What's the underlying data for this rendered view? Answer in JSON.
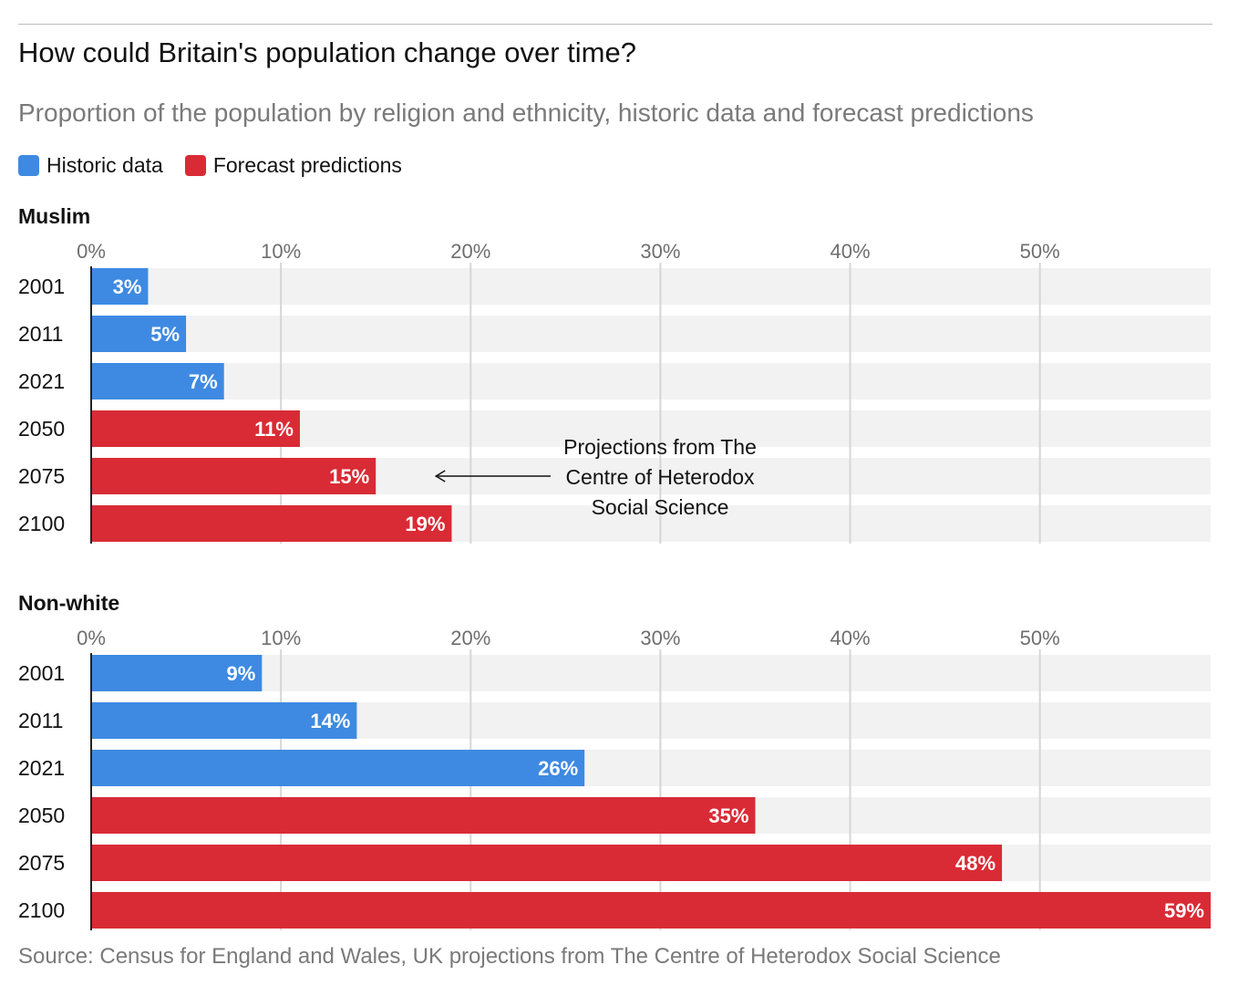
{
  "title": "How could Britain's population change over time?",
  "subtitle": "Proportion of the population by religion and ethnicity, historic data and forecast predictions",
  "legend": [
    {
      "label": "Historic data",
      "color": "#3e8ae2"
    },
    {
      "label": "Forecast predictions",
      "color": "#d92b35"
    }
  ],
  "source": "Source: Census for England and Wales, UK projections from The Centre of Heterodox Social Science",
  "chart_data": [
    {
      "type": "bar",
      "orientation": "horizontal",
      "title": "Muslim",
      "categories": [
        "2001",
        "2011",
        "2021",
        "2050",
        "2075",
        "2100"
      ],
      "values": [
        3,
        5,
        7,
        11,
        15,
        19
      ],
      "value_labels": [
        "3%",
        "5%",
        "7%",
        "11%",
        "15%",
        "19%"
      ],
      "kinds": [
        "historic",
        "historic",
        "historic",
        "forecast",
        "forecast",
        "forecast"
      ],
      "xlim": [
        0,
        59
      ],
      "xticks": [
        0,
        10,
        20,
        30,
        40,
        50
      ],
      "xtick_labels": [
        "0%",
        "10%",
        "20%",
        "30%",
        "40%",
        "50%"
      ],
      "grid": true,
      "annotation": {
        "lines": [
          "Projections from The",
          "Centre of Heterodox",
          "Social Science"
        ],
        "points_to": "2075"
      }
    },
    {
      "type": "bar",
      "orientation": "horizontal",
      "title": "Non-white",
      "categories": [
        "2001",
        "2011",
        "2021",
        "2050",
        "2075",
        "2100"
      ],
      "values": [
        9,
        14,
        26,
        35,
        48,
        59
      ],
      "value_labels": [
        "9%",
        "14%",
        "26%",
        "35%",
        "48%",
        "59%"
      ],
      "kinds": [
        "historic",
        "historic",
        "historic",
        "forecast",
        "forecast",
        "forecast"
      ],
      "xlim": [
        0,
        59
      ],
      "xticks": [
        0,
        10,
        20,
        30,
        40,
        50
      ],
      "xtick_labels": [
        "0%",
        "10%",
        "20%",
        "30%",
        "40%",
        "50%"
      ],
      "grid": true
    }
  ]
}
